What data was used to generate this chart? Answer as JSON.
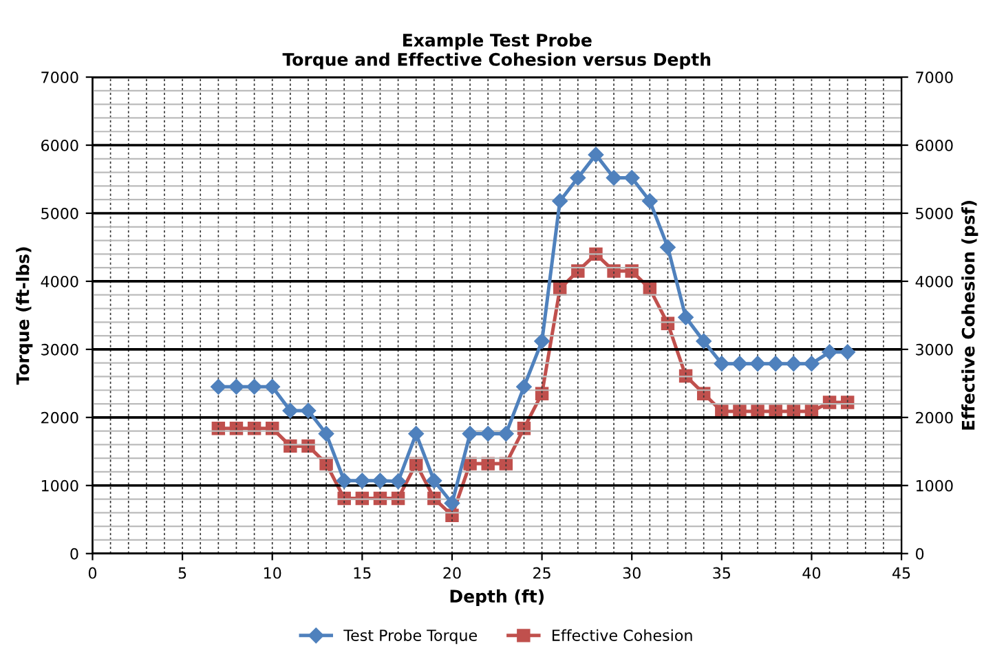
{
  "chart_data": {
    "type": "line",
    "title": "Example Test Probe\nTorque and Effective Cohesion versus Depth",
    "xlabel": "Depth (ft)",
    "ylabel": "Torque (ft-lbs)",
    "y2label": "Effective Cohesion (psf)",
    "x": [
      7,
      8,
      9,
      10,
      11,
      12,
      13,
      14,
      15,
      16,
      17,
      18,
      19,
      20,
      21,
      22,
      23,
      24,
      25,
      26,
      27,
      28,
      29,
      30,
      31,
      32,
      33,
      34,
      35,
      36,
      37,
      38,
      39,
      40,
      41,
      42
    ],
    "series": [
      {
        "name": "Test Probe Torque",
        "color": "#4f81bd",
        "marker": "diamond",
        "values": [
          2450,
          2450,
          2450,
          2450,
          2100,
          2100,
          1760,
          1070,
          1070,
          1070,
          1060,
          1760,
          1070,
          740,
          1760,
          1760,
          1760,
          2450,
          3120,
          5180,
          5520,
          5860,
          5520,
          5520,
          5180,
          4500,
          3470,
          3120,
          2790,
          2790,
          2790,
          2790,
          2790,
          2790,
          2960,
          2960
        ]
      },
      {
        "name": "Effective Cohesion",
        "color": "#c0504d",
        "marker": "square",
        "axis": "y2",
        "values": [
          1840,
          1840,
          1840,
          1840,
          1580,
          1580,
          1320,
          810,
          810,
          810,
          810,
          1320,
          810,
          560,
          1320,
          1320,
          1320,
          1840,
          2350,
          3890,
          4150,
          4400,
          4150,
          4150,
          3890,
          3380,
          2610,
          2350,
          2090,
          2090,
          2090,
          2090,
          2090,
          2090,
          2220,
          2220
        ]
      }
    ],
    "xlim": [
      0,
      45
    ],
    "xticks": [
      0,
      5,
      10,
      15,
      20,
      25,
      30,
      35,
      40,
      45
    ],
    "ylim": [
      0,
      7000
    ],
    "yticks": [
      0,
      1000,
      2000,
      3000,
      4000,
      5000,
      6000,
      7000
    ],
    "y2lim": [
      0,
      7000
    ],
    "y2ticks": [
      0,
      1000,
      2000,
      3000,
      4000,
      5000,
      6000,
      7000
    ],
    "grid": true,
    "legend": "bottom",
    "line_style": "solid"
  }
}
